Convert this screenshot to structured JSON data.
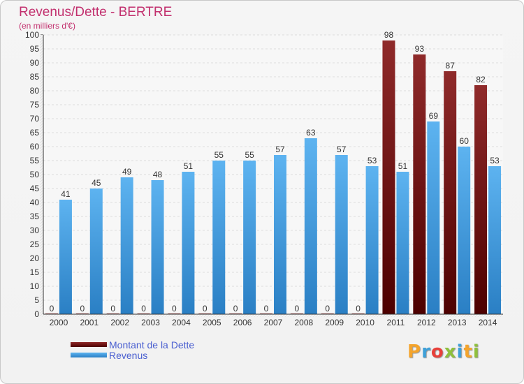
{
  "title": "Revenus/Dette - BERTRE",
  "subtitle": "(en milliers d'€)",
  "logo": "Proxiti",
  "chart_data": {
    "type": "bar",
    "categories": [
      "2000",
      "2001",
      "2002",
      "2003",
      "2004",
      "2005",
      "2006",
      "2007",
      "2008",
      "2009",
      "2010",
      "2011",
      "2012",
      "2013",
      "2014"
    ],
    "series": [
      {
        "name": "Montant de la Dette",
        "color": "#8b1a1a",
        "values": [
          0,
          0,
          0,
          0,
          0,
          0,
          0,
          0,
          0,
          0,
          0,
          98,
          93,
          87,
          82
        ]
      },
      {
        "name": "Revenus",
        "color": "#4aa3e4",
        "values": [
          41,
          45,
          49,
          48,
          51,
          55,
          55,
          57,
          63,
          57,
          53,
          51,
          69,
          60,
          53
        ]
      }
    ],
    "ylim": [
      0,
      100
    ],
    "yticks": [
      0,
      5,
      10,
      15,
      20,
      25,
      30,
      35,
      40,
      45,
      50,
      55,
      60,
      65,
      70,
      75,
      80,
      85,
      90,
      95,
      100
    ],
    "grid": true,
    "legend": "bottom-left"
  }
}
